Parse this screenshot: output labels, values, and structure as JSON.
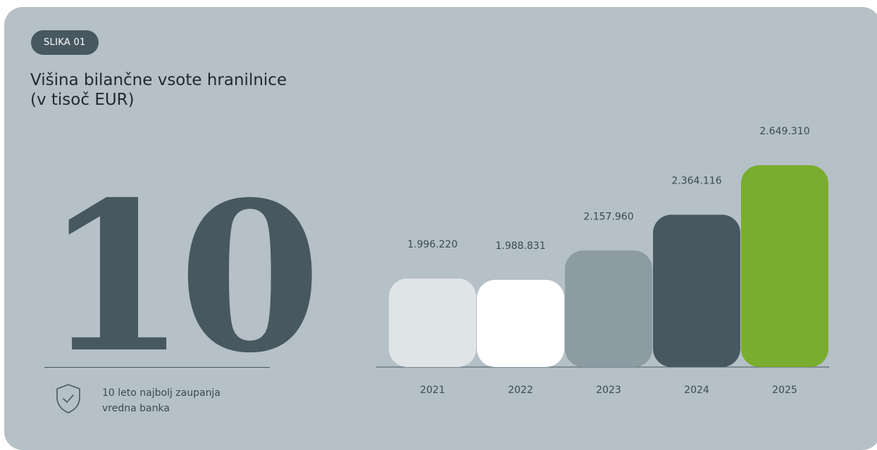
{
  "badge": "SLIKA 01",
  "title_lines": [
    "Višina bilančne vsote hranilnice",
    "(v tisoč EUR)"
  ],
  "highlight": {
    "number": "10",
    "tagline_lines": [
      "10 leto najbolj zaupanja",
      "vredna banka"
    ],
    "icon": "shield-check-icon"
  },
  "chart_data": {
    "type": "bar",
    "categories": [
      "2021",
      "2022",
      "2023",
      "2024",
      "2025"
    ],
    "values": [
      1996220,
      1988831,
      2157960,
      2364116,
      2649310
    ],
    "labels": [
      "1.996.220",
      "1.988.831",
      "2.157.960",
      "2.364.116",
      "2.649.310"
    ],
    "colors": [
      "#dfe4e7",
      "#ffffff",
      "#8d9ba3",
      "#485861",
      "#7aad2f"
    ],
    "title": "",
    "xlabel": "",
    "ylabel": "",
    "grid": false
  }
}
